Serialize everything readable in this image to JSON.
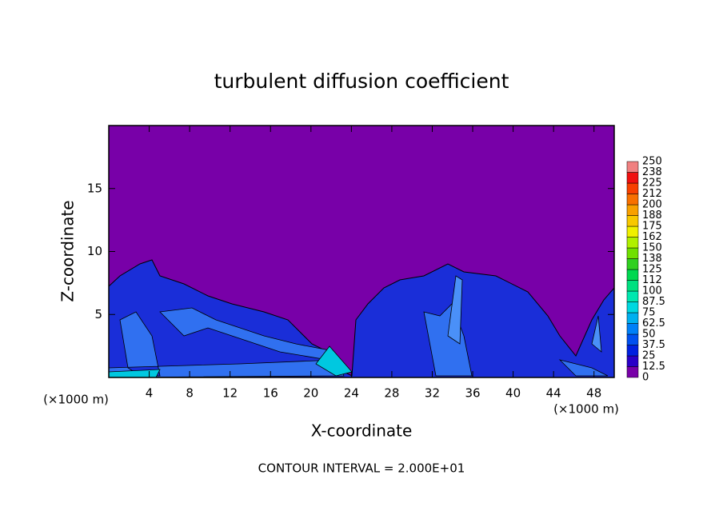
{
  "chart_data": {
    "type": "contour",
    "title": "turbulent diffusion coefficient",
    "x_label": "X-coordinate",
    "y_label": "Z-coordinate",
    "x_unit": "(×1000 m)",
    "y_unit": "(×1000 m)",
    "footer": "CONTOUR INTERVAL = 2.000E+01",
    "xlim": [
      0,
      50
    ],
    "ylim": [
      0,
      20
    ],
    "xticks": [
      4,
      8,
      12,
      16,
      20,
      24,
      28,
      32,
      36,
      40,
      44,
      48
    ],
    "yticks": [
      5,
      10,
      15
    ],
    "colorbar": {
      "levels": [
        0,
        12.5,
        25,
        37.5,
        50,
        62.5,
        75,
        87.5,
        100,
        {
          "value": 112.5,
          "label": "112"
        },
        125,
        {
          "value": 137.5,
          "label": "138"
        },
        150,
        {
          "value": 162.5,
          "label": "162"
        },
        175,
        {
          "value": 187.5,
          "label": "188"
        },
        200,
        {
          "value": 212.5,
          "label": "212"
        },
        225,
        {
          "value": 237.5,
          "label": "238"
        },
        250
      ],
      "colors": [
        "#7800a8",
        "#2a00c8",
        "#0020e0",
        "#0050f0",
        "#0080f8",
        "#00b0f0",
        "#00d8e0",
        "#00e8b0",
        "#00e080",
        "#00d850",
        "#30d020",
        "#70e000",
        "#b0f000",
        "#f0f000",
        "#f8c800",
        "#f8a000",
        "#f87000",
        "#f84000",
        "#f01010",
        "#f08080"
      ]
    }
  }
}
